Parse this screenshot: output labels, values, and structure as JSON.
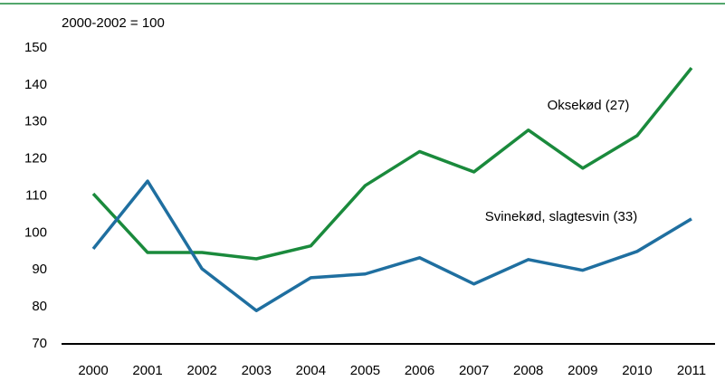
{
  "chart_data": {
    "type": "line",
    "y_axis_label": "2000-2002 = 100",
    "categories": [
      "2000",
      "2001",
      "2002",
      "2003",
      "2004",
      "2005",
      "2006",
      "2007",
      "2008",
      "2009",
      "2010",
      "2011"
    ],
    "series": [
      {
        "name": "Oksekød (27)",
        "color": "#1a8a3c",
        "values": [
          110.6,
          94.7,
          94.7,
          93,
          96.5,
          112.8,
          122,
          116.5,
          127.8,
          117.5,
          126.3,
          144.6
        ]
      },
      {
        "name": "Svinekød, slagtesvin (33)",
        "color": "#1f6fa0",
        "values": [
          95.7,
          114,
          90.3,
          79,
          87.9,
          88.9,
          93.3,
          86.2,
          92.8,
          89.9,
          95,
          103.8
        ]
      }
    ],
    "ylim": [
      70,
      150
    ],
    "yticks": [
      70,
      80,
      90,
      100,
      110,
      120,
      130,
      140,
      150
    ],
    "grid": false
  }
}
